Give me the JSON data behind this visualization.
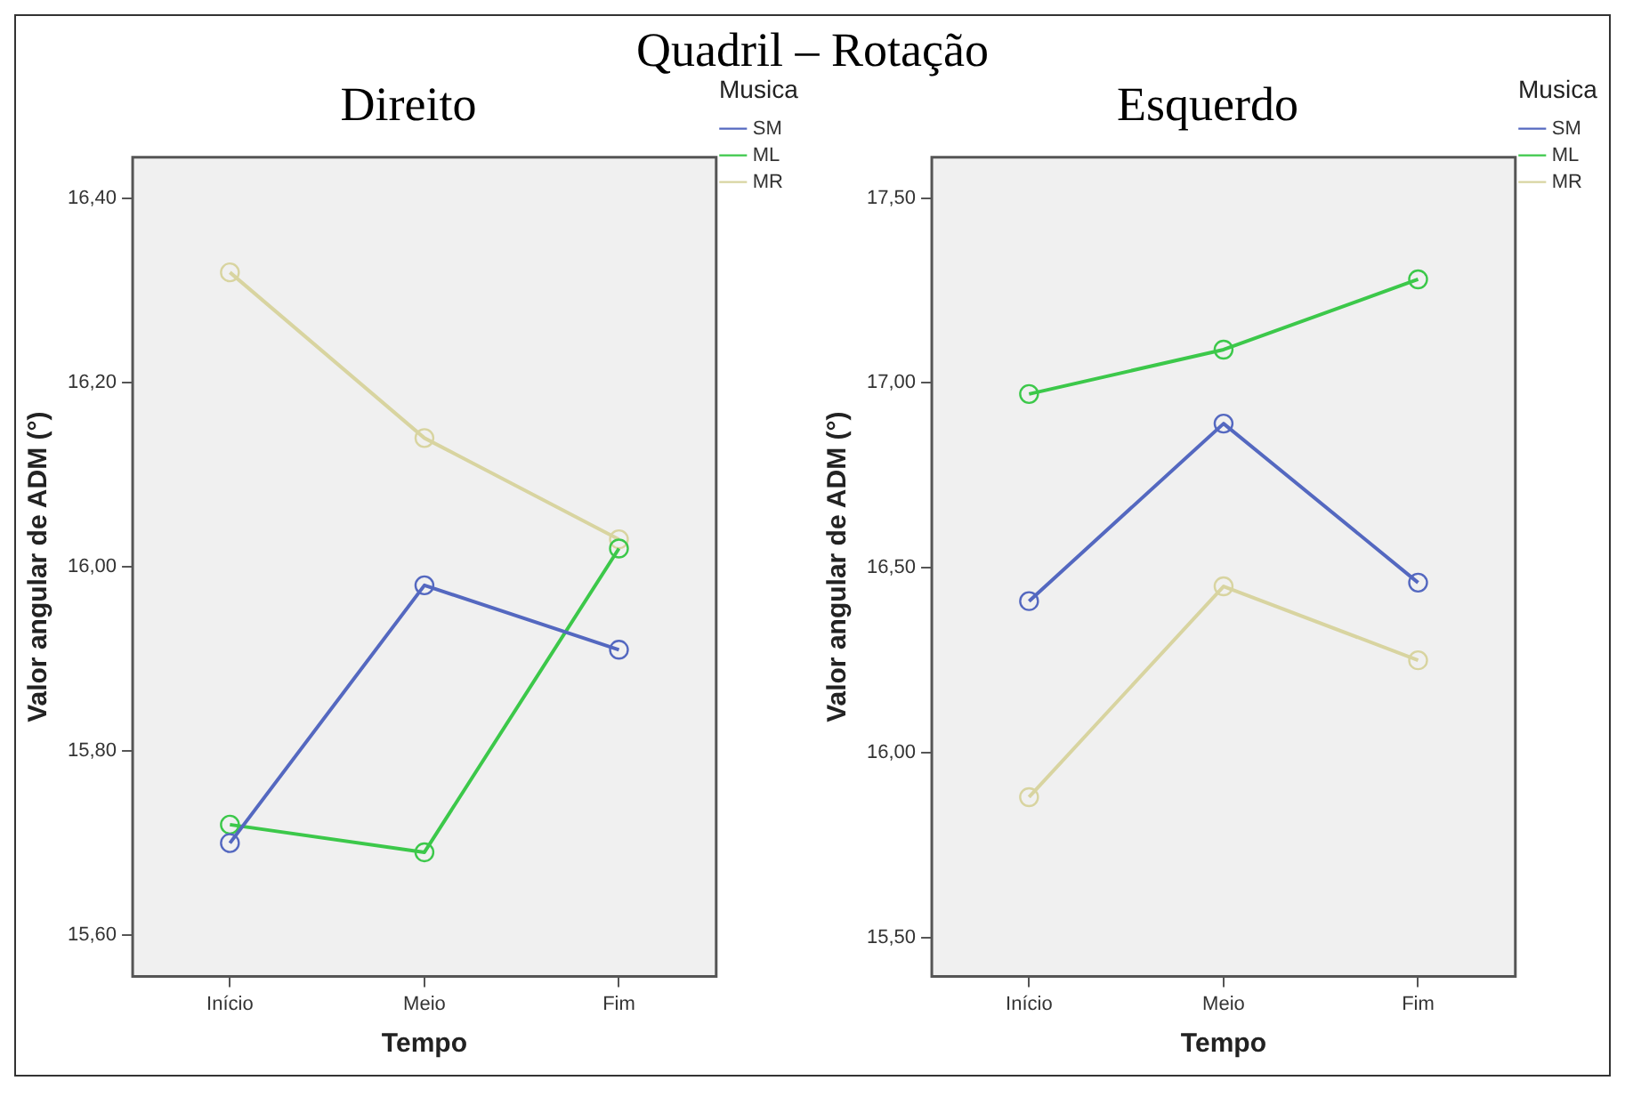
{
  "chart_data": [
    {
      "type": "line",
      "title": "Direito",
      "annotations": [
        "Quadril – Rotação"
      ],
      "xlabel": "Tempo",
      "ylabel": "Valor angular de ADM (°)",
      "categories": [
        "Início",
        "Meio",
        "Fim"
      ],
      "series": [
        {
          "name": "SM",
          "color": "#5468c0",
          "values": [
            15.7,
            15.98,
            15.91
          ]
        },
        {
          "name": "ML",
          "color": "#3cc84a",
          "values": [
            15.72,
            15.69,
            16.02
          ]
        },
        {
          "name": "MR",
          "color": "#d8d4a0",
          "values": [
            16.32,
            16.14,
            16.03
          ]
        }
      ],
      "ylim": [
        15.555,
        16.445
      ],
      "yticks": [
        {
          "value": 15.6,
          "label": "15,60"
        },
        {
          "value": 15.8,
          "label": "15,80"
        },
        {
          "value": 16.0,
          "label": "16,00"
        },
        {
          "value": 16.2,
          "label": "16,20"
        },
        {
          "value": 16.4,
          "label": "16,40"
        }
      ],
      "legend": "top right",
      "legend_title": "Musica",
      "marker": "circle",
      "grid": false
    },
    {
      "type": "line",
      "title": "Esquerdo",
      "xlabel": "Tempo",
      "ylabel": "Valor angular de ADM (°)",
      "categories": [
        "Início",
        "Meio",
        "Fim"
      ],
      "series": [
        {
          "name": "SM",
          "color": "#5468c0",
          "values": [
            16.41,
            16.89,
            16.46
          ]
        },
        {
          "name": "ML",
          "color": "#3cc84a",
          "values": [
            16.97,
            17.09,
            17.28
          ]
        },
        {
          "name": "MR",
          "color": "#d8d4a0",
          "values": [
            15.88,
            16.45,
            16.25
          ]
        }
      ],
      "ylim": [
        15.395,
        17.61
      ],
      "yticks": [
        {
          "value": 15.5,
          "label": "15,50"
        },
        {
          "value": 16.0,
          "label": "16,00"
        },
        {
          "value": 16.5,
          "label": "16,50"
        },
        {
          "value": 17.0,
          "label": "17,00"
        },
        {
          "value": 17.5,
          "label": "17,50"
        }
      ],
      "legend": "top right",
      "legend_title": "Musica",
      "marker": "circle",
      "grid": false
    }
  ]
}
